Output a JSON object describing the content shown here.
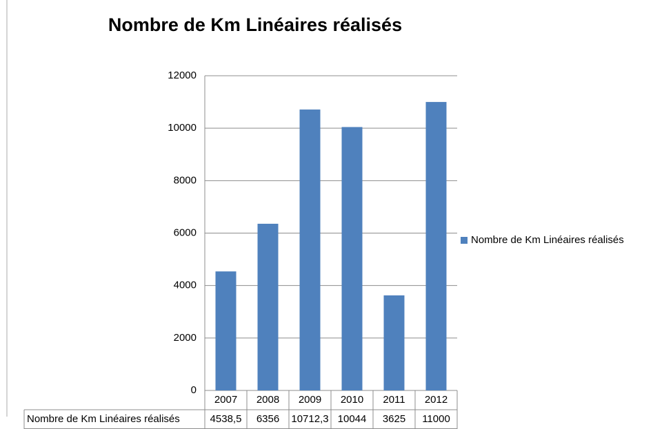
{
  "chart_data": {
    "type": "bar",
    "title": "Nombre de Km Linéaires réalisés",
    "categories": [
      "2007",
      "2008",
      "2009",
      "2010",
      "2011",
      "2012"
    ],
    "series": [
      {
        "name": "Nombre de Km Linéaires réalisés",
        "color": "#4f81bd",
        "values": [
          4538.5,
          6356,
          10712.3,
          10044,
          3625,
          11000
        ],
        "value_labels": [
          "4538,5",
          "6356",
          "10712,3",
          "10044",
          "3625",
          "11000"
        ]
      }
    ],
    "ylim": [
      0,
      12000
    ],
    "yticks": [
      0,
      2000,
      4000,
      6000,
      8000,
      10000,
      12000
    ],
    "grid": true,
    "legend": "right"
  }
}
